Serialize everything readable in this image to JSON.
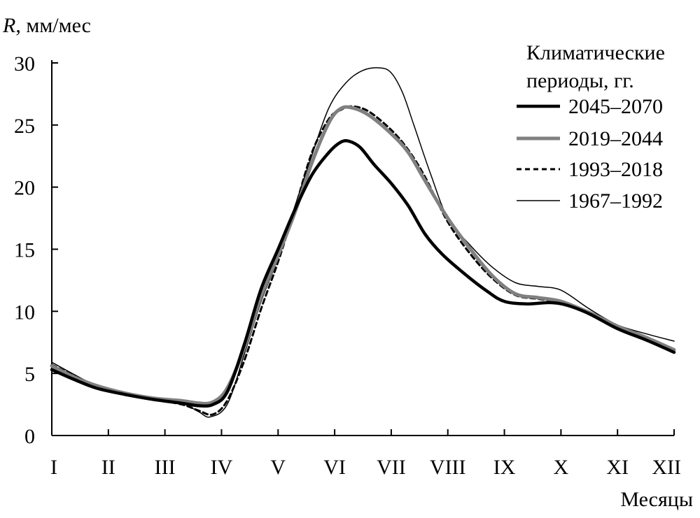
{
  "chart_data": {
    "type": "line",
    "ylabel_italic": "R",
    "ylabel_rest": ", мм/мес",
    "xlabel": "Месяцы",
    "xlim": [
      1,
      12
    ],
    "ylim": [
      0,
      30
    ],
    "ytick_step": 5,
    "categories": [
      "I",
      "II",
      "III",
      "IV",
      "V",
      "VI",
      "VII",
      "VIII",
      "IX",
      "X",
      "XI",
      "XII"
    ],
    "legend": {
      "title_line1": "Климатические",
      "title_line2": "периоды, гг.",
      "position": "top-right"
    },
    "grid": false,
    "series": [
      {
        "name": "2045–2070",
        "style": "thick-black",
        "points": [
          [
            1,
            5.3
          ],
          [
            1.4,
            4.5
          ],
          [
            1.8,
            3.8
          ],
          [
            2.3,
            3.3
          ],
          [
            2.8,
            2.9
          ],
          [
            3.3,
            2.6
          ],
          [
            3.6,
            2.4
          ],
          [
            3.85,
            2.5
          ],
          [
            4.1,
            3.5
          ],
          [
            4.4,
            7.3
          ],
          [
            4.7,
            11.8
          ],
          [
            5.0,
            15.0
          ],
          [
            5.3,
            18.2
          ],
          [
            5.6,
            21.0
          ],
          [
            5.9,
            22.8
          ],
          [
            6.1,
            23.6
          ],
          [
            6.25,
            23.7
          ],
          [
            6.45,
            23.2
          ],
          [
            6.7,
            21.8
          ],
          [
            7.0,
            20.3
          ],
          [
            7.3,
            18.5
          ],
          [
            7.6,
            16.2
          ],
          [
            7.9,
            14.6
          ],
          [
            8.3,
            13.0
          ],
          [
            8.7,
            11.6
          ],
          [
            9.0,
            10.8
          ],
          [
            9.4,
            10.6
          ],
          [
            9.8,
            10.7
          ],
          [
            10.1,
            10.5
          ],
          [
            10.5,
            9.8
          ],
          [
            11.0,
            8.6
          ],
          [
            11.5,
            7.7
          ],
          [
            12.0,
            6.7
          ]
        ]
      },
      {
        "name": "2019–2044",
        "style": "thick-gray",
        "points": [
          [
            1,
            5.6
          ],
          [
            1.4,
            4.7
          ],
          [
            1.8,
            4.0
          ],
          [
            2.3,
            3.4
          ],
          [
            2.8,
            3.0
          ],
          [
            3.3,
            2.8
          ],
          [
            3.6,
            2.6
          ],
          [
            3.85,
            2.7
          ],
          [
            4.1,
            3.8
          ],
          [
            4.4,
            7.0
          ],
          [
            4.7,
            11.2
          ],
          [
            5.0,
            14.5
          ],
          [
            5.3,
            18.0
          ],
          [
            5.6,
            22.0
          ],
          [
            5.9,
            25.2
          ],
          [
            6.1,
            26.3
          ],
          [
            6.3,
            26.4
          ],
          [
            6.6,
            25.8
          ],
          [
            7.0,
            24.3
          ],
          [
            7.3,
            22.8
          ],
          [
            7.6,
            20.5
          ],
          [
            8.0,
            17.5
          ],
          [
            8.4,
            15.0
          ],
          [
            8.8,
            12.8
          ],
          [
            9.2,
            11.4
          ],
          [
            9.6,
            11.1
          ],
          [
            10.0,
            10.8
          ],
          [
            10.5,
            9.9
          ],
          [
            11.0,
            8.8
          ],
          [
            11.5,
            7.9
          ],
          [
            12.0,
            6.9
          ]
        ]
      },
      {
        "name": "1993–2018",
        "style": "dashed-black",
        "points": [
          [
            1,
            5.7
          ],
          [
            1.4,
            4.8
          ],
          [
            1.8,
            4.0
          ],
          [
            2.3,
            3.3
          ],
          [
            2.8,
            2.9
          ],
          [
            3.3,
            2.5
          ],
          [
            3.6,
            2.0
          ],
          [
            3.85,
            1.7
          ],
          [
            4.1,
            2.8
          ],
          [
            4.4,
            6.0
          ],
          [
            4.7,
            10.2
          ],
          [
            5.0,
            14.0
          ],
          [
            5.3,
            18.3
          ],
          [
            5.6,
            22.8
          ],
          [
            5.9,
            25.5
          ],
          [
            6.1,
            26.2
          ],
          [
            6.3,
            26.5
          ],
          [
            6.6,
            26.1
          ],
          [
            7.0,
            24.6
          ],
          [
            7.3,
            23.0
          ],
          [
            7.6,
            20.8
          ],
          [
            8.0,
            17.2
          ],
          [
            8.4,
            14.6
          ],
          [
            8.8,
            12.6
          ],
          [
            9.2,
            11.3
          ],
          [
            9.6,
            11.0
          ],
          [
            10.0,
            10.7
          ],
          [
            10.5,
            9.8
          ],
          [
            11.0,
            8.6
          ],
          [
            11.5,
            7.8
          ],
          [
            12.0,
            6.8
          ]
        ]
      },
      {
        "name": "1967–1992",
        "style": "thin-black",
        "points": [
          [
            1,
            5.9
          ],
          [
            1.4,
            4.9
          ],
          [
            1.8,
            4.0
          ],
          [
            2.3,
            3.4
          ],
          [
            2.8,
            3.0
          ],
          [
            3.3,
            2.6
          ],
          [
            3.6,
            1.9
          ],
          [
            3.8,
            1.5
          ],
          [
            4.1,
            2.5
          ],
          [
            4.4,
            6.5
          ],
          [
            4.7,
            10.8
          ],
          [
            5.0,
            14.3
          ],
          [
            5.3,
            18.5
          ],
          [
            5.6,
            22.6
          ],
          [
            5.9,
            26.4
          ],
          [
            6.2,
            28.4
          ],
          [
            6.5,
            29.4
          ],
          [
            6.8,
            29.6
          ],
          [
            7.0,
            29.2
          ],
          [
            7.2,
            27.6
          ],
          [
            7.4,
            25.0
          ],
          [
            7.7,
            21.0
          ],
          [
            8.0,
            17.5
          ],
          [
            8.4,
            15.3
          ],
          [
            8.8,
            13.5
          ],
          [
            9.2,
            12.3
          ],
          [
            9.6,
            12.0
          ],
          [
            10.0,
            11.7
          ],
          [
            10.5,
            10.2
          ],
          [
            11.0,
            8.9
          ],
          [
            11.5,
            8.2
          ],
          [
            12.0,
            7.6
          ]
        ]
      }
    ]
  }
}
